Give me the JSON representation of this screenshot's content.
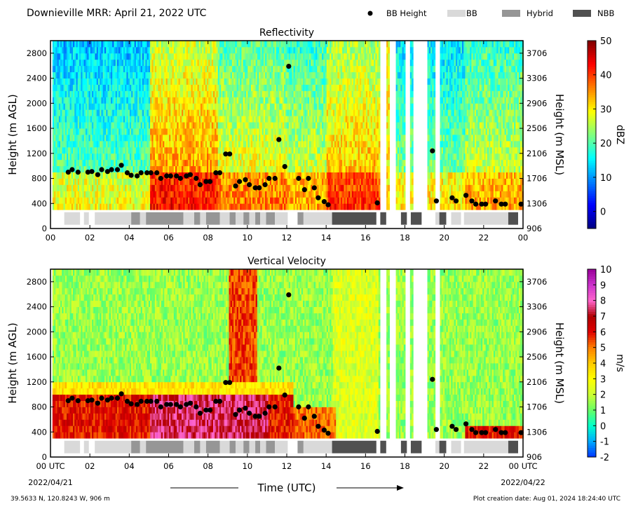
{
  "page": {
    "title": "Downieville MRR:  April 21, 2022 UTC",
    "footer_left": "39.5633 N, 120.8243 W, 906 m",
    "footer_right": "Plot creation date: Aug 01, 2024 18:24:40 UTC",
    "xlabel": "Time (UTC)",
    "start_date": "2022/04/21",
    "end_date": "2022/04/22",
    "start_time_label": "00 UTC",
    "end_time_label": "00 UTC"
  },
  "legend": [
    {
      "label": "BB Height",
      "kind": "marker",
      "color": "#000000"
    },
    {
      "label": "BB",
      "kind": "bar",
      "color": "#d9d9d9"
    },
    {
      "label": "Hybrid",
      "kind": "bar",
      "color": "#969696"
    },
    {
      "label": "NBB",
      "kind": "bar",
      "color": "#505050"
    }
  ],
  "chart_data": [
    {
      "type": "heatmap",
      "title": "Reflectivity",
      "ylabel": "Height (m AGL)",
      "ylabel_right": "Height (m MSL)",
      "xlim": [
        0,
        24
      ],
      "ylim": [
        0,
        3000
      ],
      "x_ticks": [
        "00",
        "02",
        "04",
        "06",
        "08",
        "10",
        "12",
        "14",
        "16",
        "18",
        "20",
        "22",
        "00"
      ],
      "y_ticks": [
        0,
        400,
        800,
        1200,
        1600,
        2000,
        2400,
        2800
      ],
      "y_ticks_right": [
        "906",
        "1306",
        "1706",
        "2106",
        "2506",
        "2906",
        "3306",
        "3706"
      ],
      "colorbar": {
        "label": "dBZ",
        "min": -5,
        "max": 50,
        "ticks": [
          "0",
          "10",
          "20",
          "30",
          "40",
          "50"
        ],
        "tick_values": [
          0,
          10,
          20,
          30,
          40,
          50
        ],
        "colormap": [
          "#00007f",
          "#0000ff",
          "#007fff",
          "#00ffff",
          "#7fff7f",
          "#ffff00",
          "#ff7f00",
          "#ff0000",
          "#7f0000"
        ]
      },
      "bb_height": [
        [
          0.9,
          900
        ],
        [
          1.1,
          940
        ],
        [
          1.4,
          900
        ],
        [
          1.9,
          900
        ],
        [
          2.1,
          910
        ],
        [
          2.4,
          860
        ],
        [
          2.6,
          940
        ],
        [
          2.9,
          910
        ],
        [
          3.1,
          940
        ],
        [
          3.4,
          940
        ],
        [
          3.6,
          1010
        ],
        [
          3.9,
          890
        ],
        [
          4.1,
          850
        ],
        [
          4.4,
          840
        ],
        [
          4.6,
          890
        ],
        [
          4.9,
          890
        ],
        [
          5.1,
          890
        ],
        [
          5.4,
          890
        ],
        [
          5.6,
          800
        ],
        [
          5.9,
          840
        ],
        [
          6.1,
          840
        ],
        [
          6.4,
          840
        ],
        [
          6.6,
          800
        ],
        [
          6.9,
          840
        ],
        [
          7.1,
          860
        ],
        [
          7.4,
          800
        ],
        [
          7.6,
          700
        ],
        [
          7.9,
          750
        ],
        [
          8.1,
          750
        ],
        [
          8.4,
          890
        ],
        [
          8.6,
          890
        ],
        [
          8.9,
          1190
        ],
        [
          9.1,
          1190
        ],
        [
          9.4,
          680
        ],
        [
          9.6,
          750
        ],
        [
          9.9,
          780
        ],
        [
          10.1,
          700
        ],
        [
          10.4,
          650
        ],
        [
          10.6,
          650
        ],
        [
          10.9,
          700
        ],
        [
          11.1,
          800
        ],
        [
          11.4,
          800
        ],
        [
          11.6,
          1420
        ],
        [
          11.9,
          990
        ],
        [
          12.1,
          2590
        ],
        [
          12.6,
          800
        ],
        [
          12.9,
          620
        ],
        [
          13.1,
          800
        ],
        [
          13.4,
          650
        ],
        [
          13.6,
          490
        ],
        [
          13.9,
          430
        ],
        [
          14.1,
          380
        ],
        [
          16.6,
          410
        ],
        [
          19.4,
          1240
        ],
        [
          19.6,
          440
        ],
        [
          20.4,
          490
        ],
        [
          20.6,
          440
        ],
        [
          21.1,
          530
        ],
        [
          21.4,
          440
        ],
        [
          21.6,
          390
        ],
        [
          21.9,
          390
        ],
        [
          22.1,
          390
        ],
        [
          22.6,
          440
        ],
        [
          22.9,
          390
        ],
        [
          23.1,
          390
        ],
        [
          23.9,
          390
        ]
      ],
      "bb_type_bar": [
        {
          "start": 0.7,
          "end": 1.5,
          "type": "BB"
        },
        {
          "start": 1.7,
          "end": 1.95,
          "type": "BB"
        },
        {
          "start": 2.25,
          "end": 4.1,
          "type": "BB"
        },
        {
          "start": 4.1,
          "end": 4.55,
          "type": "Hybrid"
        },
        {
          "start": 4.55,
          "end": 4.85,
          "type": "BB"
        },
        {
          "start": 4.85,
          "end": 6.75,
          "type": "Hybrid"
        },
        {
          "start": 6.75,
          "end": 7.3,
          "type": "BB"
        },
        {
          "start": 7.3,
          "end": 7.6,
          "type": "Hybrid"
        },
        {
          "start": 7.6,
          "end": 7.9,
          "type": "BB"
        },
        {
          "start": 7.9,
          "end": 8.6,
          "type": "Hybrid"
        },
        {
          "start": 8.6,
          "end": 9.1,
          "type": "BB"
        },
        {
          "start": 9.1,
          "end": 9.4,
          "type": "Hybrid"
        },
        {
          "start": 9.4,
          "end": 9.8,
          "type": "BB"
        },
        {
          "start": 9.8,
          "end": 10.1,
          "type": "Hybrid"
        },
        {
          "start": 10.1,
          "end": 10.4,
          "type": "BB"
        },
        {
          "start": 10.4,
          "end": 10.65,
          "type": "Hybrid"
        },
        {
          "start": 10.65,
          "end": 10.95,
          "type": "BB"
        },
        {
          "start": 10.95,
          "end": 11.4,
          "type": "Hybrid"
        },
        {
          "start": 11.4,
          "end": 12.05,
          "type": "BB"
        },
        {
          "start": 12.55,
          "end": 12.85,
          "type": "Hybrid"
        },
        {
          "start": 12.85,
          "end": 14.3,
          "type": "BB"
        },
        {
          "start": 14.3,
          "end": 16.55,
          "type": "NBB"
        },
        {
          "start": 16.75,
          "end": 17.05,
          "type": "NBB"
        },
        {
          "start": 17.8,
          "end": 18.1,
          "type": "NBB"
        },
        {
          "start": 18.3,
          "end": 18.85,
          "type": "NBB"
        },
        {
          "start": 19.55,
          "end": 19.75,
          "type": "BB"
        },
        {
          "start": 19.75,
          "end": 20.1,
          "type": "NBB"
        },
        {
          "start": 20.35,
          "end": 20.85,
          "type": "BB"
        },
        {
          "start": 21.0,
          "end": 23.25,
          "type": "BB"
        },
        {
          "start": 23.25,
          "end": 23.75,
          "type": "NBB"
        }
      ]
    },
    {
      "type": "heatmap",
      "title": "Vertical Velocity",
      "ylabel": "Height (m AGL)",
      "ylabel_right": "Height (m MSL)",
      "xlim": [
        0,
        24
      ],
      "ylim": [
        0,
        3000
      ],
      "x_ticks": [
        "00 UTC",
        "02",
        "04",
        "06",
        "08",
        "10",
        "12",
        "14",
        "16",
        "18",
        "20",
        "22",
        "00 UTC"
      ],
      "y_ticks": [
        0,
        400,
        800,
        1200,
        1600,
        2000,
        2400,
        2800
      ],
      "y_ticks_right": [
        "906",
        "1306",
        "1706",
        "2106",
        "2506",
        "2906",
        "3306",
        "3706"
      ],
      "colorbar": {
        "label": "m/s",
        "min": -2,
        "max": 10,
        "ticks": [
          "-2",
          "-1",
          "0",
          "1",
          "2",
          "3",
          "4",
          "5",
          "6",
          "7",
          "8",
          "9",
          "10"
        ],
        "tick_values": [
          -2,
          -1,
          0,
          1,
          2,
          3,
          4,
          5,
          6,
          7,
          8,
          9,
          10
        ],
        "colormap": [
          "#0033ff",
          "#00aaff",
          "#00ffcc",
          "#66ff66",
          "#ccff33",
          "#ffff00",
          "#ffcc00",
          "#ff8000",
          "#e00000",
          "#b00000",
          "#ff66cc",
          "#cc33cc",
          "#990099"
        ]
      },
      "bb_height_same_as_reflectivity": true,
      "bb_type_bar_same_as_reflectivity": true
    }
  ]
}
